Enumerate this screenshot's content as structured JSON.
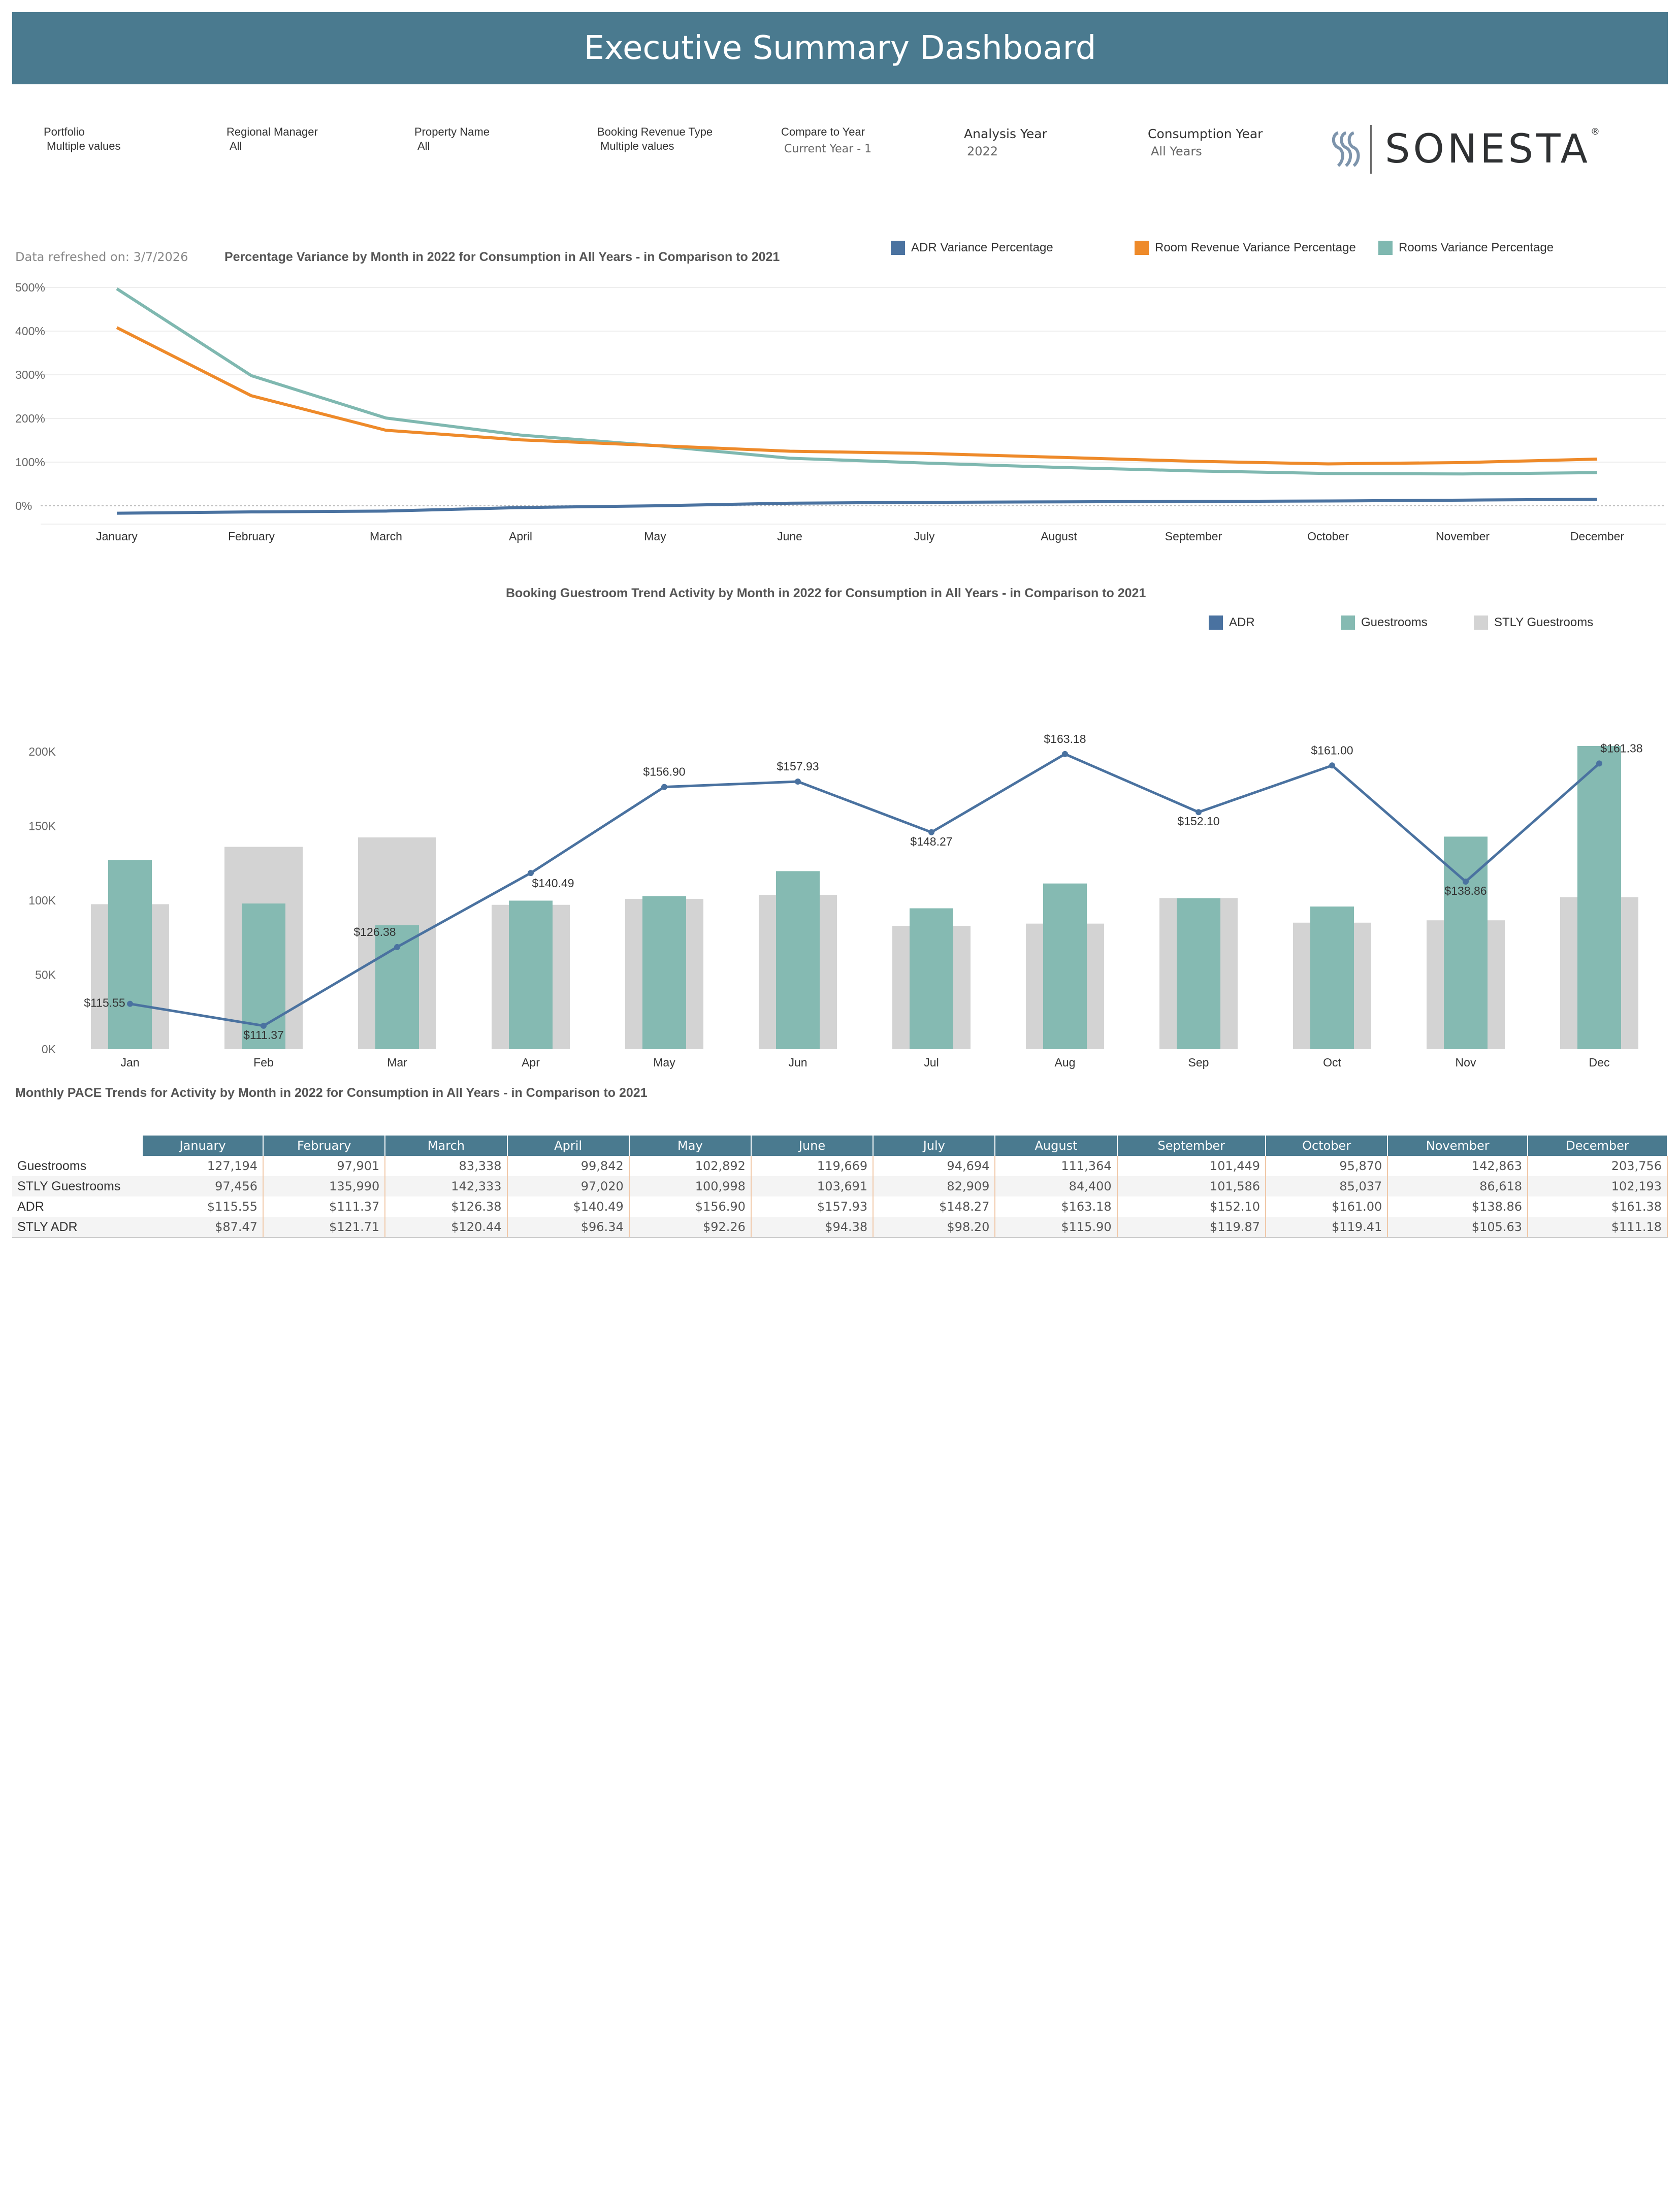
{
  "header": {
    "title": "Executive Summary Dashboard"
  },
  "filters": [
    {
      "label": "Portfolio",
      "value": "Multiple values"
    },
    {
      "label": "Regional Manager",
      "value": "All"
    },
    {
      "label": "Property Name",
      "value": "All"
    },
    {
      "label": "Booking Revenue Type",
      "value": "Multiple values"
    },
    {
      "label": "Compare to Year",
      "value": "Current Year - 1"
    },
    {
      "label": "Analysis Year",
      "value": "2022"
    },
    {
      "label": "Consumption Year",
      "value": "All Years"
    }
  ],
  "logo": {
    "text": "SONESTA",
    "reg": "®"
  },
  "refresh": "Data refreshed on: 3/7/2026",
  "colors": {
    "banner": "#4a7a8f",
    "adr": "#4a72a0",
    "room_revenue": "#ee8a2a",
    "rooms": "#7fb8b0",
    "guestrooms": "#85bab2",
    "stly": "#d3d3d3"
  },
  "variance_chart": {
    "title": "Percentage Variance by Month in 2022 for Consumption in All Years - in Comparison to 2021",
    "legend": [
      "ADR Variance Percentage",
      "Room Revenue Variance Percentage",
      "Rooms Variance Percentage"
    ],
    "chart_data": {
      "type": "line",
      "categories": [
        "January",
        "February",
        "March",
        "April",
        "May",
        "June",
        "July",
        "August",
        "September",
        "October",
        "November",
        "December"
      ],
      "y_ticks": [
        "500%",
        "400%",
        "300%",
        "200%",
        "100%",
        "0%"
      ],
      "ylim": [
        -40,
        500
      ],
      "series": [
        {
          "name": "ADR Variance Percentage",
          "values": [
            -17,
            -14,
            -12,
            -4,
            0,
            6,
            8,
            9,
            10,
            11,
            13,
            15
          ]
        },
        {
          "name": "Room Revenue Variance Percentage",
          "values": [
            408,
            252,
            173,
            151,
            138,
            125,
            120,
            111,
            102,
            96,
            99,
            107
          ]
        },
        {
          "name": "Rooms Variance Percentage",
          "values": [
            497,
            298,
            201,
            162,
            138,
            109,
            98,
            88,
            80,
            74,
            73,
            76
          ]
        }
      ]
    }
  },
  "trend_chart": {
    "title": "Booking Guestroom Trend Activity by Month in 2022 for Consumption in All Years - in Comparison to 2021",
    "legend": [
      "ADR",
      "Guestrooms",
      "STLY  Guestrooms"
    ],
    "chart_data": {
      "type": "bar",
      "categories": [
        "Jan",
        "Feb",
        "Mar",
        "Apr",
        "May",
        "Jun",
        "Jul",
        "Aug",
        "Sep",
        "Oct",
        "Nov",
        "Dec"
      ],
      "y_ticks": [
        "200K",
        "150K",
        "100K",
        "50K",
        "0K"
      ],
      "ylim": [
        0,
        200000
      ],
      "series": [
        {
          "name": "Guestrooms",
          "values": [
            127194,
            97901,
            83338,
            99842,
            102892,
            119669,
            94694,
            111364,
            101449,
            95870,
            142863,
            203756
          ]
        },
        {
          "name": "STLY  Guestrooms",
          "values": [
            97456,
            135990,
            142333,
            97020,
            100998,
            103691,
            82909,
            84400,
            101586,
            85037,
            86618,
            102193
          ]
        },
        {
          "name": "ADR",
          "values": [
            115.55,
            111.37,
            126.38,
            140.49,
            156.9,
            157.93,
            148.27,
            163.18,
            152.1,
            161.0,
            138.86,
            161.38
          ],
          "labels": [
            "$115.55",
            "$111.37",
            "$126.38",
            "$140.49",
            "$156.90",
            "$157.93",
            "$148.27",
            "$163.18",
            "$152.10",
            "$161.00",
            "$138.86",
            "$161.38"
          ]
        }
      ],
      "adr_range": [
        110,
        165
      ]
    }
  },
  "pace_table": {
    "title": "Monthly PACE Trends for Activity by Month in 2022 for Consumption in All Years  - in Comparison to 2021",
    "columns": [
      "January",
      "February",
      "March",
      "April",
      "May",
      "June",
      "July",
      "August",
      "September",
      "October",
      "November",
      "December"
    ],
    "rows": [
      {
        "label": "Guestrooms",
        "cells": [
          "127,194",
          "97,901",
          "83,338",
          "99,842",
          "102,892",
          "119,669",
          "94,694",
          "111,364",
          "101,449",
          "95,870",
          "142,863",
          "203,756"
        ]
      },
      {
        "label": "STLY  Guestrooms",
        "cells": [
          "97,456",
          "135,990",
          "142,333",
          "97,020",
          "100,998",
          "103,691",
          "82,909",
          "84,400",
          "101,586",
          "85,037",
          "86,618",
          "102,193"
        ]
      },
      {
        "label": "ADR",
        "cells": [
          "$115.55",
          "$111.37",
          "$126.38",
          "$140.49",
          "$156.90",
          "$157.93",
          "$148.27",
          "$163.18",
          "$152.10",
          "$161.00",
          "$138.86",
          "$161.38"
        ]
      },
      {
        "label": "STLY ADR",
        "cells": [
          "$87.47",
          "$121.71",
          "$120.44",
          "$96.34",
          "$92.26",
          "$94.38",
          "$98.20",
          "$115.90",
          "$119.87",
          "$119.41",
          "$105.63",
          "$111.18"
        ]
      }
    ]
  }
}
